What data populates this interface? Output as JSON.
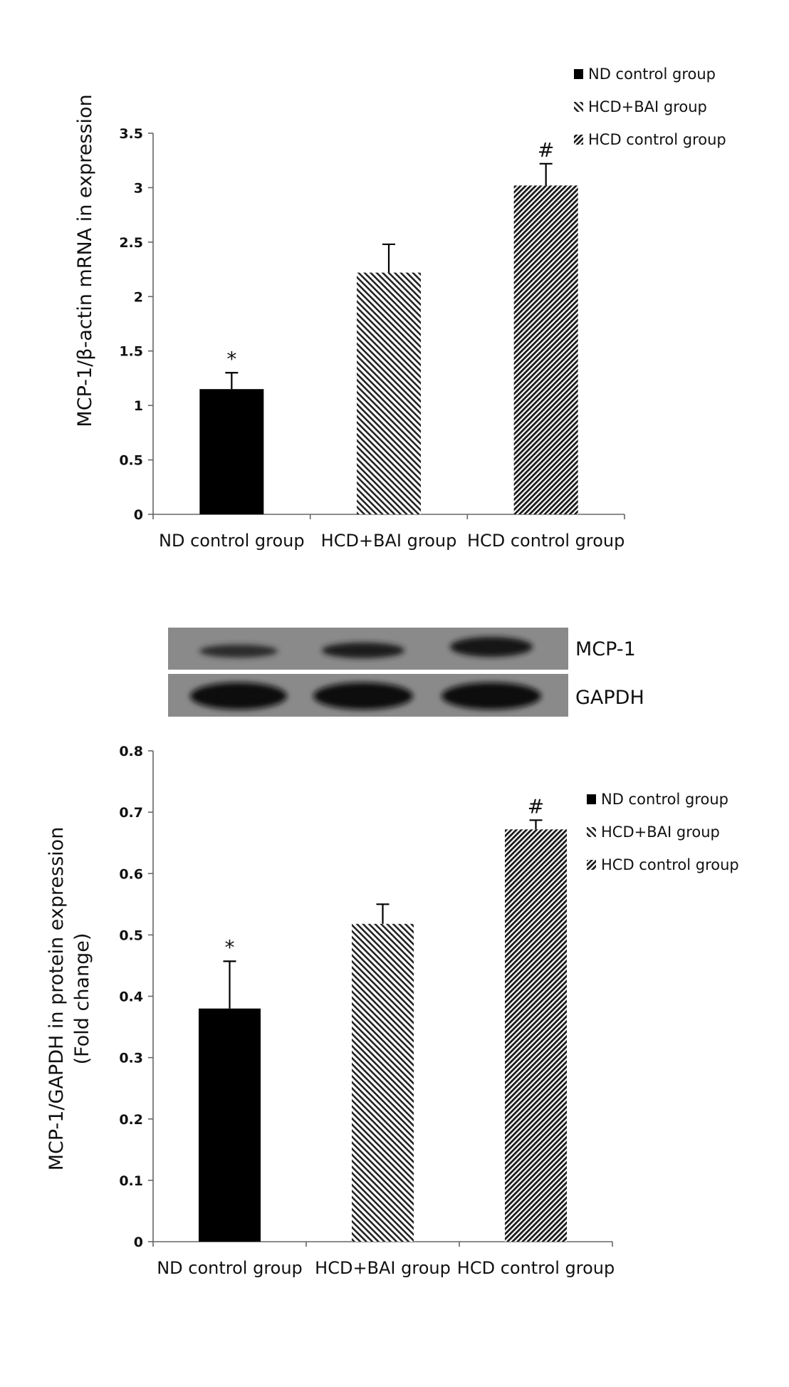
{
  "chart_data": [
    {
      "type": "bar",
      "ylabel": "MCP-1/β-actin  mRNA in expression",
      "ylim": [
        0,
        3.5
      ],
      "yticks": [
        "0",
        "0.5",
        "1",
        "1.5",
        "2",
        "2.5",
        "3",
        "3.5"
      ],
      "categories": [
        "ND control group",
        "HCD+BAI group",
        "HCD control group"
      ],
      "values": [
        1.15,
        2.22,
        3.02
      ],
      "error": [
        0.15,
        0.26,
        0.2
      ],
      "significance": [
        "*",
        "",
        "#"
      ],
      "legend": [
        "ND control group",
        "HCD+BAI group",
        "HCD control group"
      ],
      "legend_position": "top-right",
      "grid": false
    },
    {
      "type": "bar",
      "ylabel": [
        "MCP-1/GAPDH in protein expression",
        "(Fold change)"
      ],
      "ylim": [
        0,
        0.8
      ],
      "yticks": [
        "0",
        "0.1",
        "0.2",
        "0.3",
        "0.4",
        "0.5",
        "0.6",
        "0.7",
        "0.8"
      ],
      "categories": [
        "ND control group",
        "HCD+BAI group",
        "HCD control group"
      ],
      "values": [
        0.38,
        0.518,
        0.672
      ],
      "error": [
        0.077,
        0.032,
        0.015
      ],
      "significance": [
        "*",
        "",
        "#"
      ],
      "legend": [
        "ND control group",
        "HCD+BAI group",
        "HCD control group"
      ],
      "legend_position": "right",
      "grid": false
    }
  ],
  "blot": {
    "labels": [
      "MCP-1",
      "GAPDH"
    ]
  },
  "colors": {
    "nd": "#000000",
    "pattern": "#222222",
    "axis": "#666666"
  }
}
